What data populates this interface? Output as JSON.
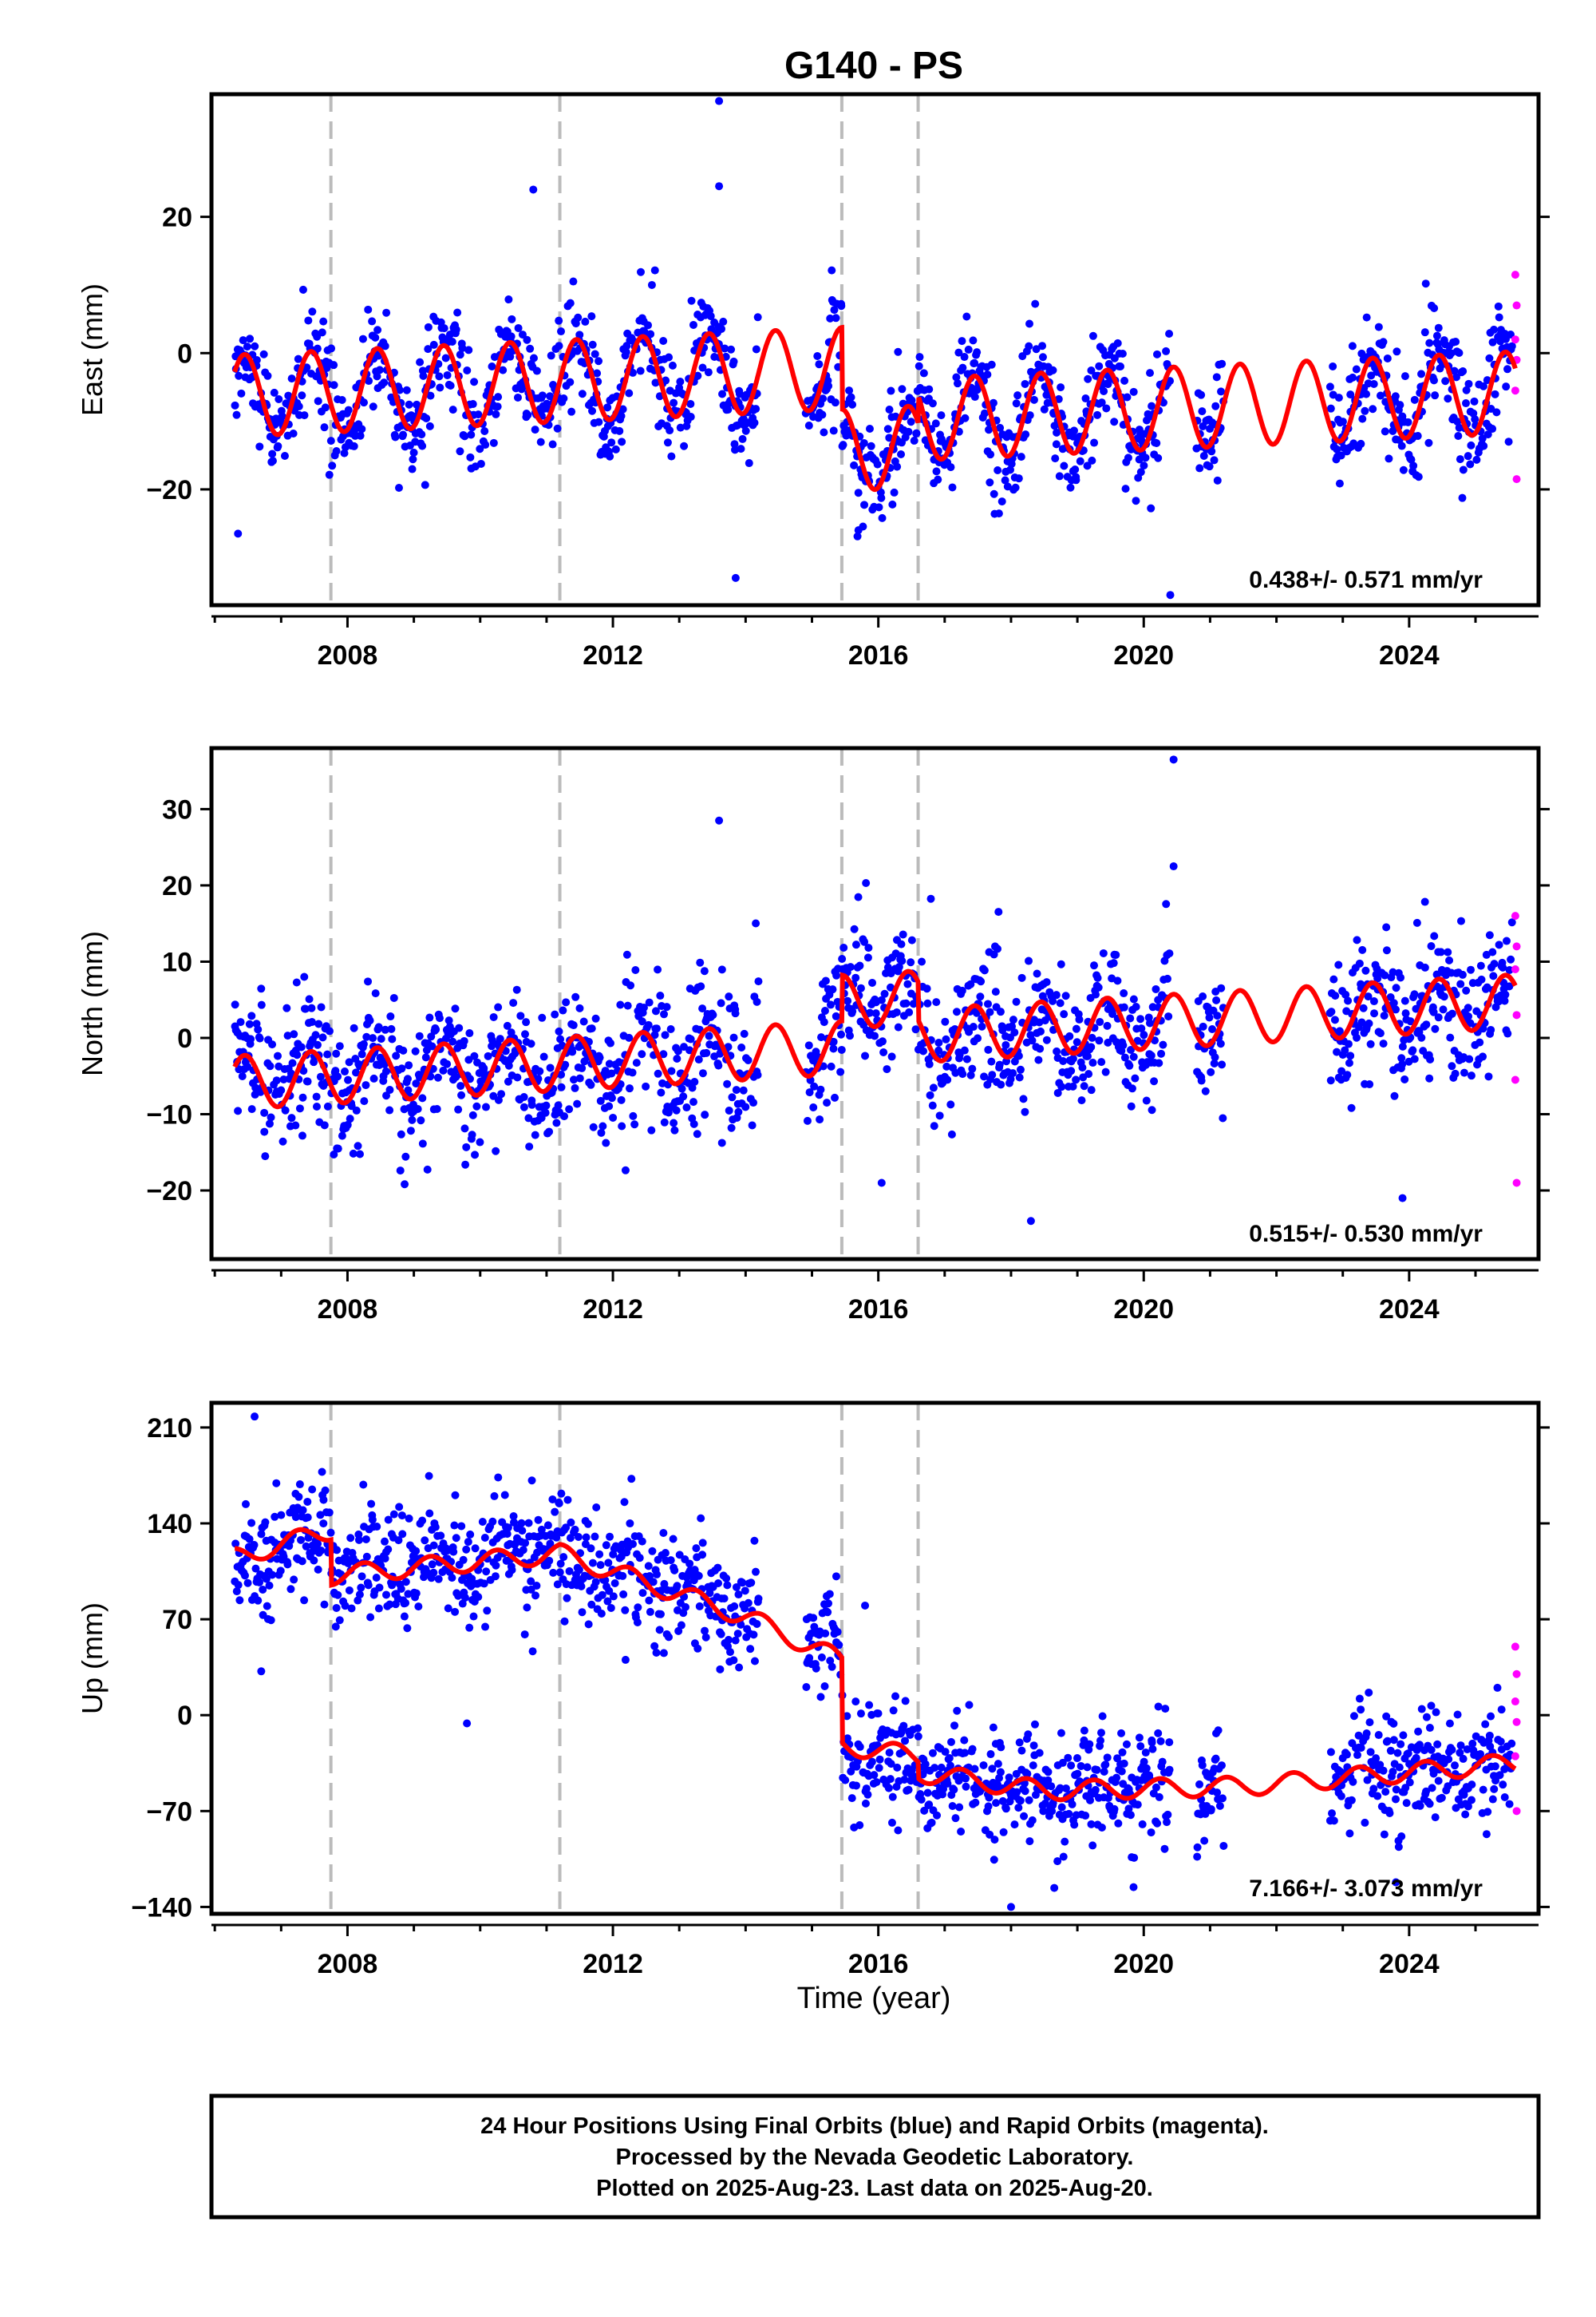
{
  "title": "G140 - PS",
  "xlabel": "Time (year)",
  "xticks": [
    "2008",
    "2012",
    "2016",
    "2020",
    "2024"
  ],
  "colors": {
    "final": "#0000ff",
    "rapid": "#ff00ff",
    "model": "#ff0000",
    "breaks": "#bbbbbb",
    "frame": "#000000"
  },
  "legend": {
    "line1": "24 Hour Positions Using Final Orbits (blue) and Rapid Orbits (magenta).",
    "line2": "Processed by the Nevada Geodetic Laboratory.",
    "line3": "Plotted on 2025-Aug-23. Last data on 2025-Aug-20."
  },
  "chart_data": [
    {
      "type": "scatter",
      "component": "East",
      "ylabel": "East (mm)",
      "rate_text": "0.438+/- 0.571 mm/yr",
      "xlim": [
        2005.95,
        2025.95
      ],
      "ylim": [
        -37,
        38
      ],
      "yticks": [
        "20",
        "0",
        "−20"
      ],
      "ytick_values": [
        20,
        0,
        -20
      ],
      "breaks": [
        2007.75,
        2011.2,
        2015.45,
        2016.6
      ],
      "gaps": [
        [
          2014.2,
          2014.9
        ],
        [
          2020.4,
          2020.8
        ],
        [
          2021.2,
          2022.8
        ]
      ],
      "model": {
        "trend_per_yr": 0.44,
        "annual_amp": 6.0,
        "offsets": [
          [
            2006.3,
            -2
          ],
          [
            2015.45,
            -12
          ],
          [
            2016.6,
            4
          ]
        ]
      },
      "noise_std": 3.5,
      "outliers": [
        [
          2013.6,
          37
        ],
        [
          2013.85,
          -33
        ],
        [
          2020.4,
          -35.5
        ],
        [
          2006.35,
          -26.5
        ],
        [
          2015.7,
          -26
        ],
        [
          2010.8,
          24
        ],
        [
          2013.6,
          24.5
        ],
        [
          2025.5,
          -13
        ]
      ],
      "rapid": [
        [
          2025.6,
          11.5
        ],
        [
          2025.62,
          7
        ],
        [
          2025.6,
          2
        ],
        [
          2025.62,
          -1
        ],
        [
          2025.6,
          -5.5
        ],
        [
          2025.62,
          -18.5
        ]
      ]
    },
    {
      "type": "scatter",
      "component": "North",
      "ylabel": "North (mm)",
      "rate_text": "0.515+/- 0.530 mm/yr",
      "xlim": [
        2005.95,
        2025.95
      ],
      "ylim": [
        -29,
        38
      ],
      "yticks": [
        "30",
        "20",
        "10",
        "0",
        "−10",
        "−20"
      ],
      "ytick_values": [
        30,
        20,
        10,
        0,
        -10,
        -20
      ],
      "breaks": [
        2007.75,
        2011.2,
        2015.45,
        2016.6
      ],
      "gaps": [
        [
          2014.2,
          2014.9
        ],
        [
          2020.4,
          2020.8
        ],
        [
          2021.2,
          2022.8
        ]
      ],
      "model": {
        "trend_per_yr": 0.5,
        "annual_amp": 3.5,
        "offsets": [
          [
            2006.3,
            -1
          ],
          [
            2015.45,
            6
          ],
          [
            2016.6,
            -5
          ]
        ]
      },
      "noise_std": 4.0,
      "outliers": [
        [
          2020.45,
          36.5
        ],
        [
          2013.6,
          28.5
        ],
        [
          2020.45,
          22.5
        ],
        [
          2018.3,
          -24
        ],
        [
          2023.9,
          -21
        ],
        [
          2016.05,
          -19
        ]
      ],
      "rapid": [
        [
          2025.6,
          16
        ],
        [
          2025.62,
          12
        ],
        [
          2025.6,
          9
        ],
        [
          2025.62,
          3
        ],
        [
          2025.6,
          -5.5
        ],
        [
          2025.62,
          -19
        ]
      ]
    },
    {
      "type": "scatter",
      "component": "Up",
      "ylabel": "Up (mm)",
      "rate_text": "7.166+/- 3.073 mm/yr",
      "xlim": [
        2005.95,
        2025.95
      ],
      "ylim": [
        -145,
        228
      ],
      "yticks": [
        "210",
        "140",
        "70",
        "0",
        "−70",
        "−140"
      ],
      "ytick_values": [
        210,
        140,
        70,
        0,
        -70,
        -140
      ],
      "breaks": [
        2007.75,
        2011.2,
        2015.45,
        2016.6
      ],
      "gaps": [
        [
          2014.2,
          2014.9
        ],
        [
          2020.4,
          2020.8
        ],
        [
          2021.2,
          2022.8
        ]
      ],
      "model": {
        "levels": [
          [
            2006.3,
            115
          ],
          [
            2007.75,
            135
          ],
          [
            2007.76,
            102
          ],
          [
            2011.2,
            118
          ],
          [
            2014.0,
            72
          ],
          [
            2015.45,
            40
          ],
          [
            2015.46,
            -22
          ],
          [
            2016.6,
            -30
          ],
          [
            2016.61,
            -42
          ],
          [
            2018.5,
            -55
          ],
          [
            2021.5,
            -52
          ],
          [
            2025.6,
            -35
          ]
        ],
        "annual_amp": 7
      },
      "noise_std": 18,
      "outliers": [
        [
          2006.6,
          218
        ],
        [
          2006.7,
          32
        ],
        [
          2009.8,
          -6
        ],
        [
          2018.0,
          -140
        ],
        [
          2023.8,
          -122
        ],
        [
          2015.8,
          80
        ]
      ],
      "rapid": [
        [
          2025.6,
          50
        ],
        [
          2025.62,
          30
        ],
        [
          2025.6,
          10
        ],
        [
          2025.62,
          -5
        ],
        [
          2025.6,
          -30
        ],
        [
          2025.62,
          -70
        ]
      ]
    }
  ]
}
